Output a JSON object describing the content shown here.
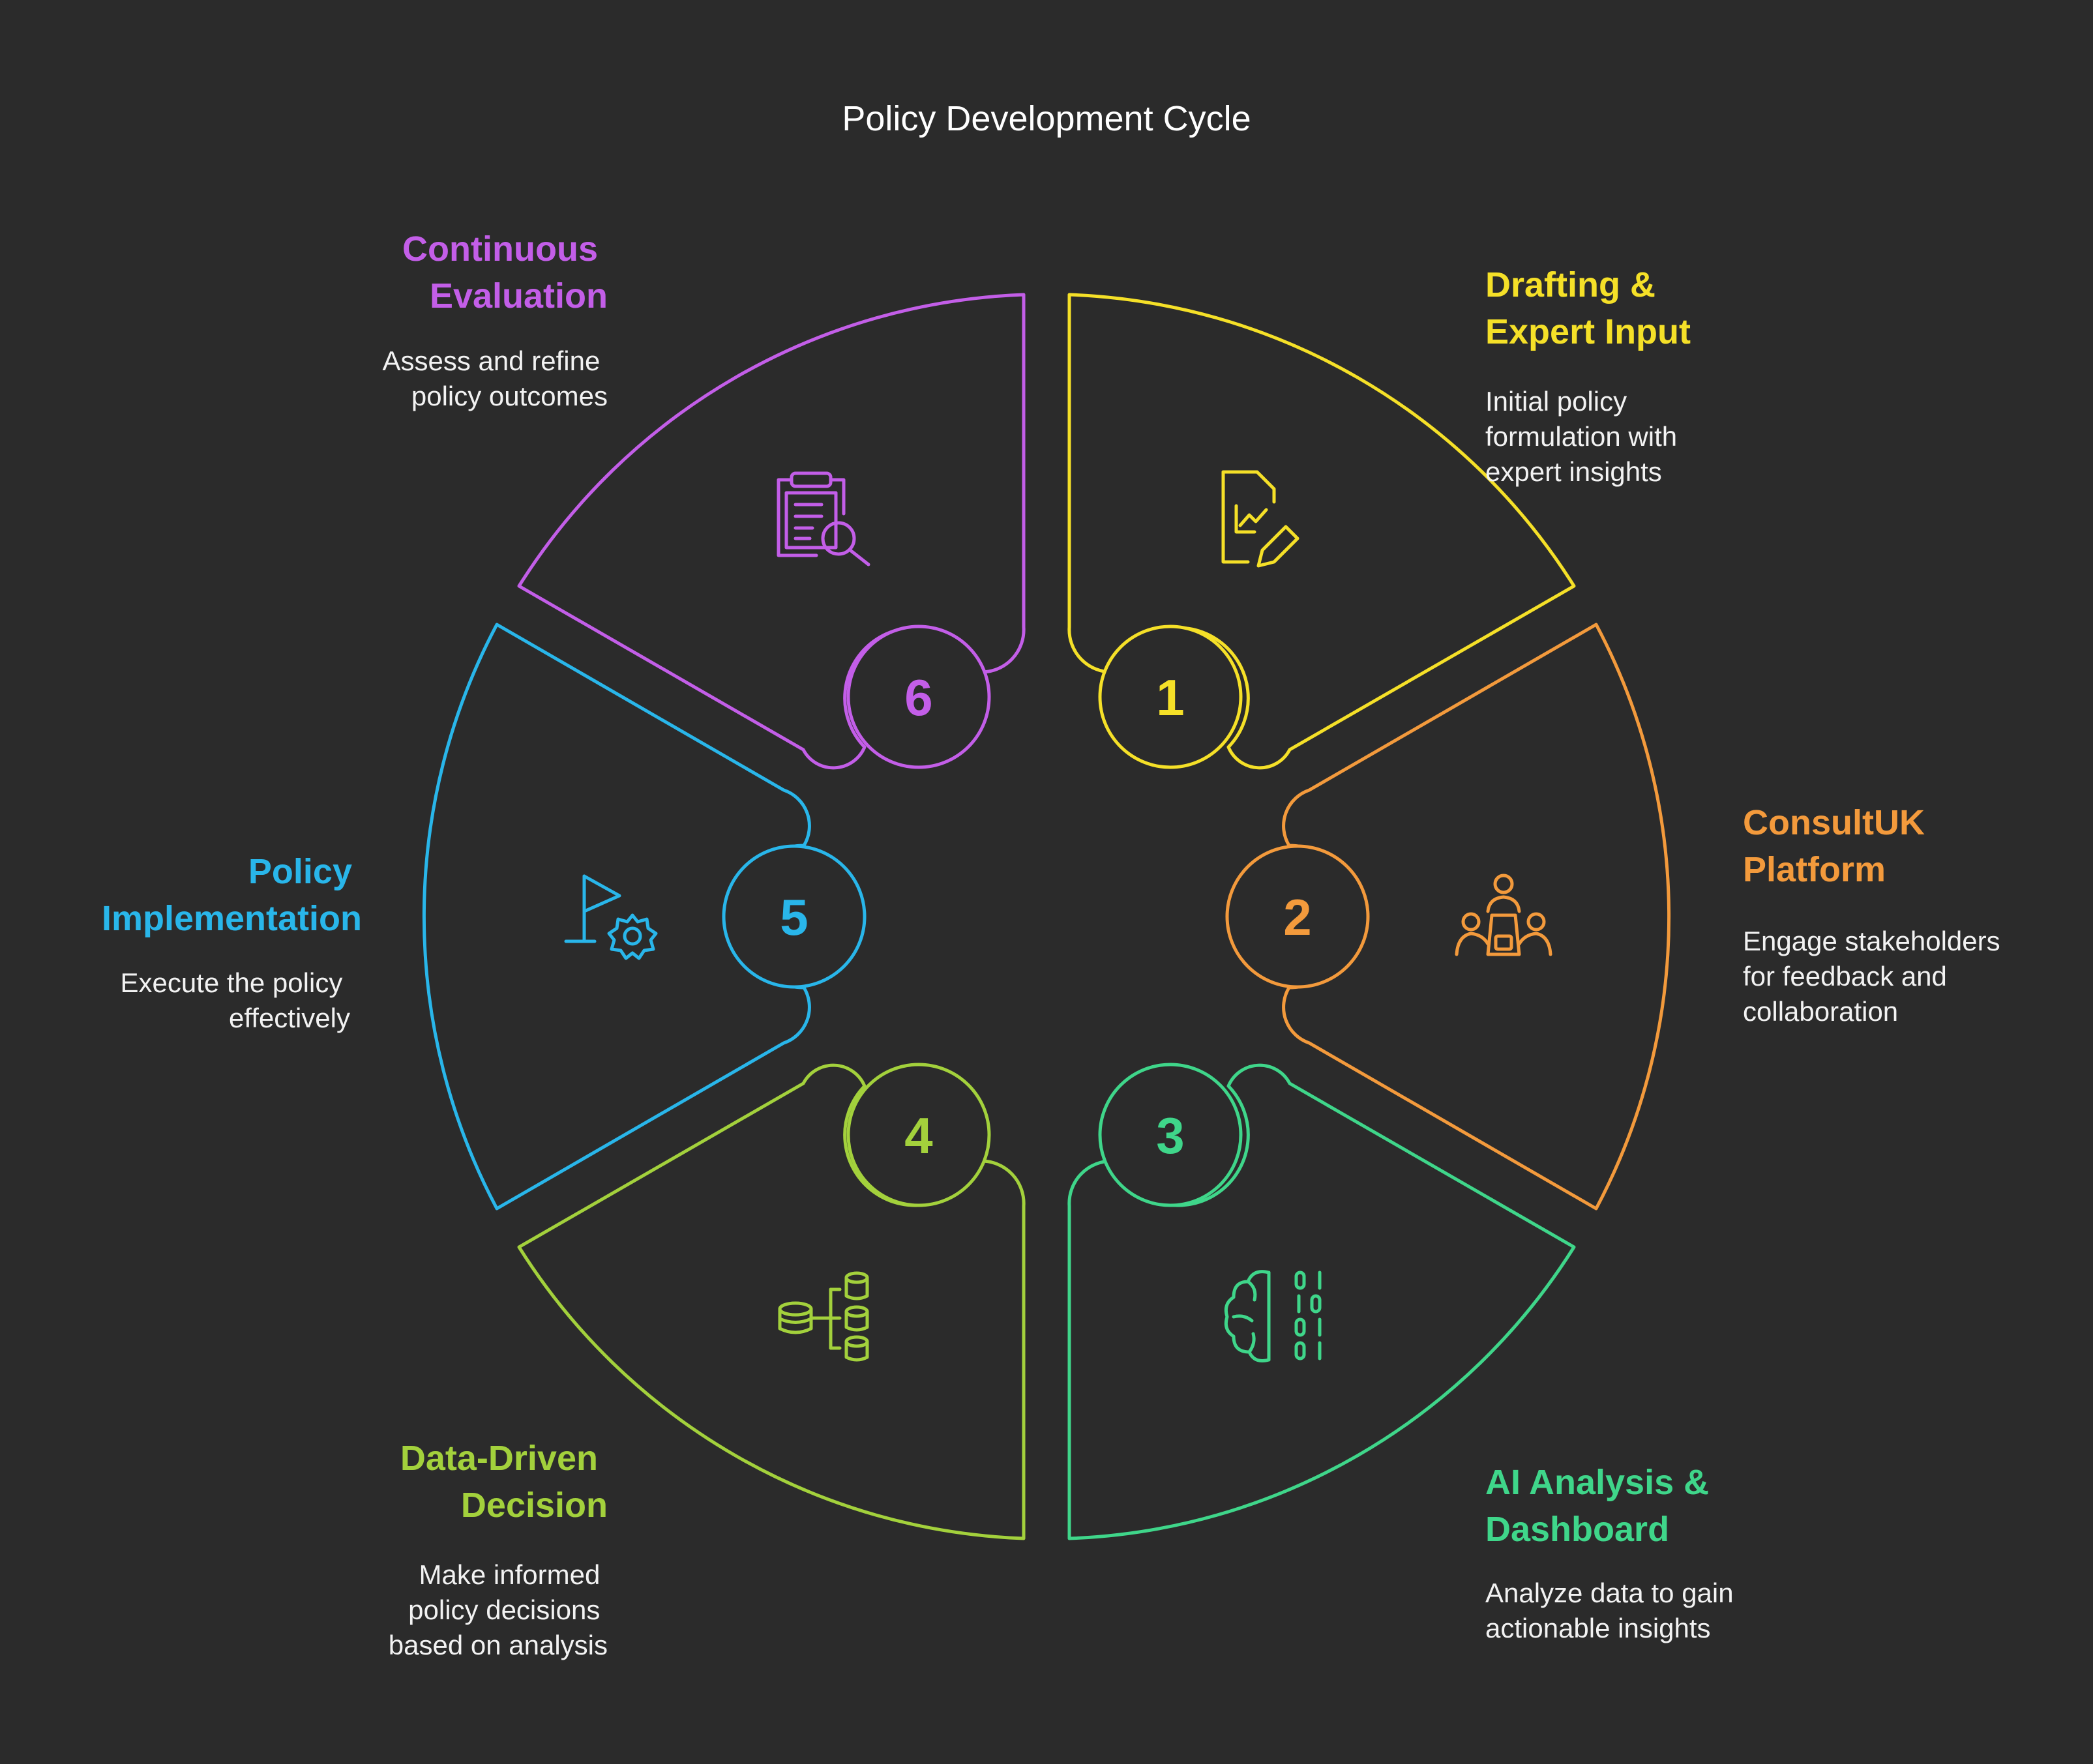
{
  "title": "Policy Development Cycle",
  "stages": [
    {
      "number": "1",
      "title_lines": [
        "Drafting &",
        "Expert Input"
      ],
      "desc_lines": [
        "Initial policy",
        "formulation with",
        "expert insights"
      ],
      "color": "#f5e028",
      "icon": "document-chart-pencil-icon"
    },
    {
      "number": "2",
      "title_lines": [
        "ConsultUK",
        "Platform"
      ],
      "desc_lines": [
        "Engage stakeholders",
        "for feedback and",
        "collaboration"
      ],
      "color": "#f39a3c",
      "icon": "stakeholders-meeting-icon"
    },
    {
      "number": "3",
      "title_lines": [
        "AI Analysis &",
        "Dashboard"
      ],
      "desc_lines": [
        "Analyze data to gain",
        "actionable insights"
      ],
      "color": "#3fd68a",
      "icon": "brain-binary-icon"
    },
    {
      "number": "4",
      "title_lines": [
        "Data-Driven",
        "Decision"
      ],
      "desc_lines": [
        "Make informed",
        "policy decisions",
        "based on analysis"
      ],
      "color": "#a3d13c",
      "icon": "database-tree-icon"
    },
    {
      "number": "5",
      "title_lines": [
        "Policy",
        "Implementation"
      ],
      "desc_lines": [
        "Execute the policy",
        "effectively"
      ],
      "color": "#29b6ea",
      "icon": "flag-gear-icon"
    },
    {
      "number": "6",
      "title_lines": [
        "Continuous",
        "Evaluation"
      ],
      "desc_lines": [
        "Assess and refine",
        "policy outcomes"
      ],
      "color": "#c35ee8",
      "icon": "clipboard-search-icon"
    }
  ]
}
